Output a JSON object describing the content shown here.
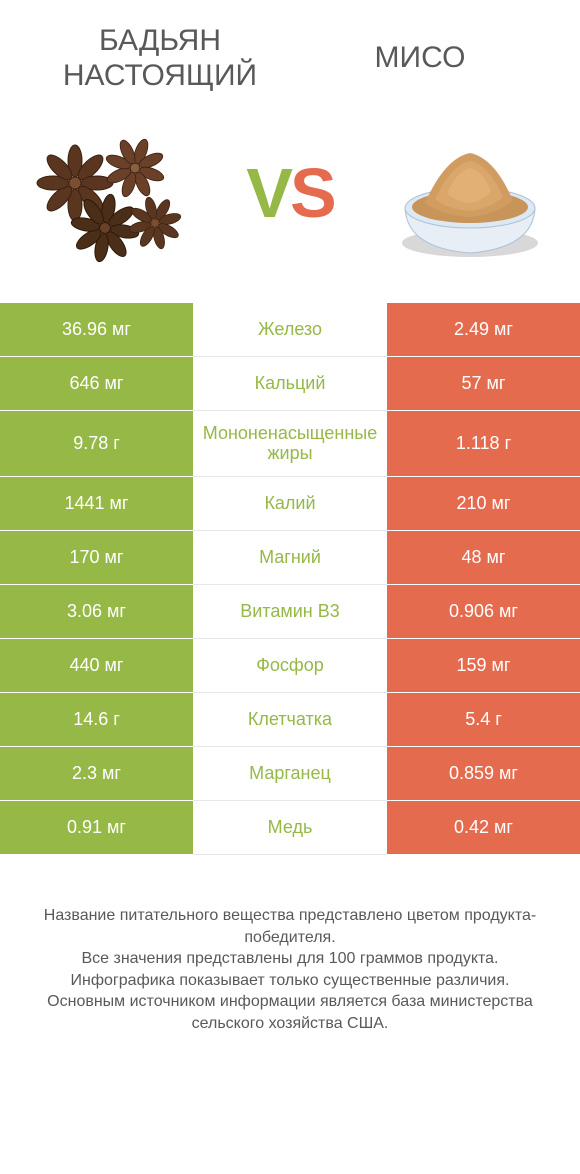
{
  "colors": {
    "green": "#96b846",
    "orange": "#e56b4e",
    "text": "#595959",
    "white": "#ffffff"
  },
  "header": {
    "left_title": "БАДЬЯН НАСТОЯЩИЙ",
    "right_title": "МИСО",
    "vs_v": "V",
    "vs_s": "S"
  },
  "rows": [
    {
      "left": "36.96 мг",
      "mid": "Железо",
      "right": "2.49 мг",
      "winner": "left",
      "tall": false
    },
    {
      "left": "646 мг",
      "mid": "Кальций",
      "right": "57 мг",
      "winner": "left",
      "tall": false
    },
    {
      "left": "9.78 г",
      "mid": "Мононенасыщенные жиры",
      "right": "1.118 г",
      "winner": "left",
      "tall": true
    },
    {
      "left": "1441 мг",
      "mid": "Калий",
      "right": "210 мг",
      "winner": "left",
      "tall": false
    },
    {
      "left": "170 мг",
      "mid": "Магний",
      "right": "48 мг",
      "winner": "left",
      "tall": false
    },
    {
      "left": "3.06 мг",
      "mid": "Витамин B3",
      "right": "0.906 мг",
      "winner": "left",
      "tall": false
    },
    {
      "left": "440 мг",
      "mid": "Фосфор",
      "right": "159 мг",
      "winner": "left",
      "tall": false
    },
    {
      "left": "14.6 г",
      "mid": "Клетчатка",
      "right": "5.4 г",
      "winner": "left",
      "tall": false
    },
    {
      "left": "2.3 мг",
      "mid": "Марганец",
      "right": "0.859 мг",
      "winner": "left",
      "tall": false
    },
    {
      "left": "0.91 мг",
      "mid": "Медь",
      "right": "0.42 мг",
      "winner": "left",
      "tall": false
    }
  ],
  "footer": {
    "l1": "Название питательного вещества представлено цветом продукта-победителя.",
    "l2": "Все значения представлены для 100 граммов продукта.",
    "l3": "Инфографика показывает только существенные различия.",
    "l4": "Основным источником информации является база министерства сельского хозяйства США."
  }
}
